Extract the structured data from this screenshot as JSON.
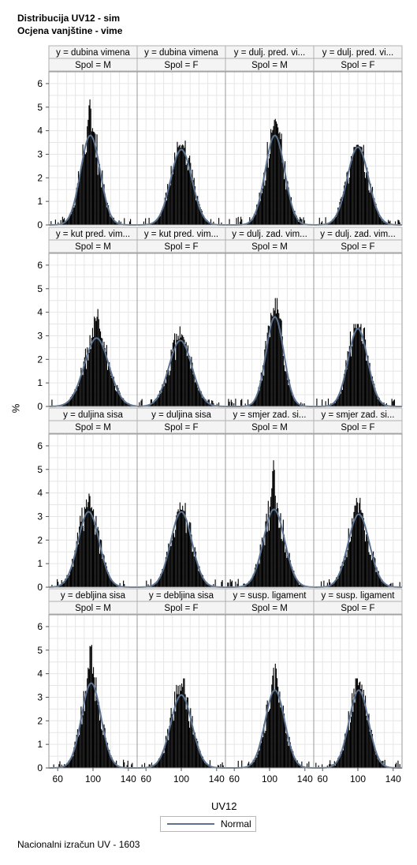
{
  "titles": {
    "line1": "Distribucija UV12 - sim",
    "line2": "Ocjena vanjštine - vime"
  },
  "footnote": "Nacionalni izračun UV - 1603",
  "colors": {
    "bars": "#000000",
    "curve": "#5b7391",
    "grid": "#e6e6e6",
    "frame": "#999999",
    "strip_bg": "#f4f4f4"
  },
  "chart_data": {
    "type": "histogram-panel",
    "xlabel": "UV12",
    "ylabel": "%",
    "x_ticks": [
      60,
      100,
      140
    ],
    "xlim": [
      50,
      150
    ],
    "y_ticks": [
      0,
      1,
      2,
      3,
      4,
      5,
      6
    ],
    "ylim": [
      0,
      6.5
    ],
    "legend": {
      "position": "bottom",
      "entries": [
        "Normal"
      ]
    },
    "grid": true,
    "panels": [
      {
        "row": 0,
        "col": 0,
        "y_label": "y = dubina vimena",
        "spol": "Spol = M",
        "mean": 97,
        "sd": 11,
        "normal_peak": 3.8,
        "hist_peak": 5.8
      },
      {
        "row": 0,
        "col": 1,
        "y_label": "y = dubina vimena",
        "spol": "Spol = F",
        "mean": 100,
        "sd": 12,
        "normal_peak": 3.2,
        "hist_peak": 3.6
      },
      {
        "row": 0,
        "col": 2,
        "y_label": "y = dulj. pred. vi...",
        "spol": "Spol = M",
        "mean": 106,
        "sd": 11,
        "normal_peak": 3.8,
        "hist_peak": 4.9
      },
      {
        "row": 0,
        "col": 3,
        "y_label": "y = dulj. pred. vi...",
        "spol": "Spol = F",
        "mean": 100,
        "sd": 12,
        "normal_peak": 3.3,
        "hist_peak": 3.4
      },
      {
        "row": 1,
        "col": 0,
        "y_label": "y = kut pred. vim...",
        "spol": "Spol = M",
        "mean": 104,
        "sd": 14,
        "normal_peak": 2.9,
        "hist_peak": 4.6
      },
      {
        "row": 1,
        "col": 1,
        "y_label": "y = kut pred. vim...",
        "spol": "Spol = F",
        "mean": 99,
        "sd": 13,
        "normal_peak": 2.8,
        "hist_peak": 3.4
      },
      {
        "row": 1,
        "col": 2,
        "y_label": "y = dulj. zad. vim...",
        "spol": "Spol = M",
        "mean": 106,
        "sd": 10,
        "normal_peak": 3.8,
        "hist_peak": 4.6
      },
      {
        "row": 1,
        "col": 3,
        "y_label": "y = dulj. zad. vim...",
        "spol": "Spol = F",
        "mean": 100,
        "sd": 11,
        "normal_peak": 3.3,
        "hist_peak": 3.5
      },
      {
        "row": 2,
        "col": 0,
        "y_label": "y = duljina sisa",
        "spol": "Spol = M",
        "mean": 95,
        "sd": 12,
        "normal_peak": 3.2,
        "hist_peak": 4.3
      },
      {
        "row": 2,
        "col": 1,
        "y_label": "y = duljina sisa",
        "spol": "Spol = F",
        "mean": 100,
        "sd": 12,
        "normal_peak": 3.2,
        "hist_peak": 3.6
      },
      {
        "row": 2,
        "col": 2,
        "y_label": "y = smjer zad. si...",
        "spol": "Spol = M",
        "mean": 105,
        "sd": 12,
        "normal_peak": 3.3,
        "hist_peak": 5.7
      },
      {
        "row": 2,
        "col": 3,
        "y_label": "y = smjer zad. si...",
        "spol": "Spol = F",
        "mean": 101,
        "sd": 12,
        "normal_peak": 3.1,
        "hist_peak": 4.0
      },
      {
        "row": 3,
        "col": 0,
        "y_label": "y = debljina sisa",
        "spol": "Spol = M",
        "mean": 98,
        "sd": 11,
        "normal_peak": 3.6,
        "hist_peak": 6.0
      },
      {
        "row": 3,
        "col": 1,
        "y_label": "y = debljina sisa",
        "spol": "Spol = F",
        "mean": 100,
        "sd": 12,
        "normal_peak": 3.1,
        "hist_peak": 3.8
      },
      {
        "row": 3,
        "col": 2,
        "y_label": "y = susp. ligament",
        "spol": "Spol = M",
        "mean": 106,
        "sd": 11,
        "normal_peak": 3.3,
        "hist_peak": 4.8
      },
      {
        "row": 3,
        "col": 3,
        "y_label": "y = susp. ligament",
        "spol": "Spol = F",
        "mean": 101,
        "sd": 11,
        "normal_peak": 3.3,
        "hist_peak": 3.8
      }
    ]
  }
}
